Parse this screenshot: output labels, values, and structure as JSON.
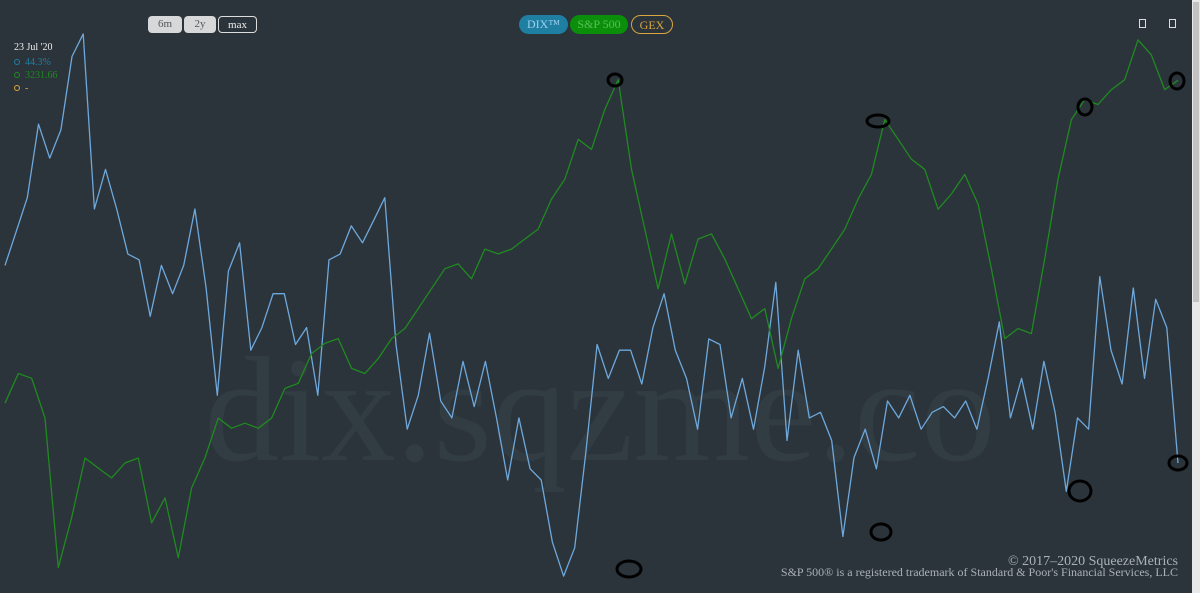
{
  "chart_data": {
    "type": "line",
    "series": [
      {
        "name": "DIX™",
        "color": "#6ea8dc",
        "toggle_color": "#1f7fa3",
        "values": [
          47.8,
          48.4,
          49.0,
          50.3,
          49.7,
          50.2,
          51.5,
          51.9,
          48.8,
          49.5,
          48.8,
          48.0,
          47.9,
          46.9,
          47.8,
          47.3,
          47.8,
          48.8,
          47.4,
          45.5,
          47.7,
          48.2,
          46.3,
          46.7,
          47.3,
          47.3,
          46.4,
          46.7,
          45.5,
          47.9,
          48.0,
          48.5,
          48.2,
          48.6,
          49.0,
          46.4,
          44.9,
          45.5,
          46.6,
          45.4,
          45.1,
          46.1,
          45.3,
          46.1,
          45.1,
          44.0,
          45.1,
          44.2,
          44.0,
          42.9,
          42.3,
          42.8,
          44.5,
          46.4,
          45.8,
          46.3,
          46.3,
          45.7,
          46.7,
          47.3,
          46.3,
          45.8,
          44.9,
          46.5,
          46.4,
          45.1,
          45.8,
          44.9,
          46.0,
          47.5,
          44.7,
          46.3,
          45.1,
          45.2,
          44.7,
          43.0,
          44.4,
          44.9,
          44.2,
          45.4,
          45.1,
          45.5,
          44.9,
          45.2,
          45.3,
          45.1,
          45.4,
          44.9,
          45.8,
          46.8,
          45.1,
          45.8,
          44.9,
          46.1,
          45.2,
          43.8,
          45.1,
          44.9,
          47.6,
          46.3,
          45.7,
          47.4,
          45.8,
          47.2,
          46.7,
          44.3
        ]
      },
      {
        "name": "S&P 500",
        "color": "#1f8a1f",
        "toggle_color": "#0b8f0b",
        "axis": "y2",
        "values": [
          1952,
          2070,
          2051,
          1893,
          1301,
          1498,
          1735,
          1695,
          1656,
          1715,
          1735,
          1478,
          1577,
          1340,
          1616,
          1735,
          1893,
          1853,
          1873,
          1853,
          1893,
          2011,
          2031,
          2149,
          2189,
          2208,
          2090,
          2070,
          2129,
          2208,
          2248,
          2327,
          2406,
          2485,
          2504,
          2445,
          2563,
          2544,
          2563,
          2603,
          2642,
          2761,
          2840,
          2998,
          2958,
          3116,
          3234,
          2879,
          2642,
          2406,
          2623,
          2425,
          2603,
          2623,
          2524,
          2406,
          2287,
          2327,
          2090,
          2287,
          2445,
          2485,
          2563,
          2642,
          2761,
          2859,
          3076,
          2998,
          2919,
          2879,
          2721,
          2781,
          2859,
          2741,
          2485,
          2208,
          2248,
          2228,
          2524,
          2840,
          3076,
          3155,
          3136,
          3195,
          3234,
          3392,
          3333,
          3195,
          3231.66
        ]
      }
    ],
    "ylim": [
      42,
      52.5
    ],
    "y2lim": [
      1200,
      3550
    ]
  },
  "ui": {
    "ranges": [
      "6m",
      "2y",
      "max"
    ],
    "selected_range": "max",
    "extra_toggle": {
      "label": "GEX",
      "color": "#d9a640"
    },
    "readout": {
      "date": "23 Jul '20",
      "items": [
        "44.3%",
        "3231.66",
        "-"
      ]
    },
    "watermark": "dix.sqzme.co",
    "footer": [
      "© 2017–2020 SqueezeMetrics",
      "S&P 500® is a registered trademark of Standard & Poor's Financial Services, LLC"
    ]
  }
}
